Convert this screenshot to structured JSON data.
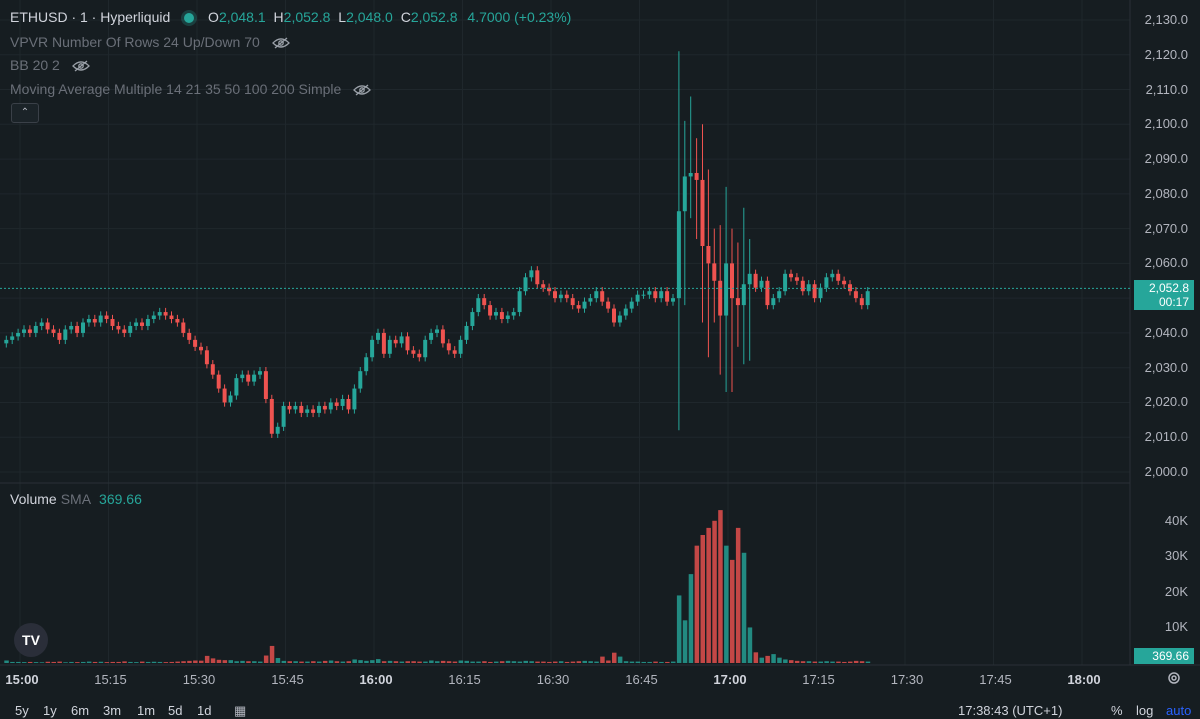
{
  "header": {
    "symbol": "ETHUSD · 1 · Hyperliquid",
    "o_label": "O",
    "o_value": "2,048.1",
    "h_label": "H",
    "h_value": "2,052.8",
    "l_label": "L",
    "l_value": "2,048.0",
    "c_label": "C",
    "c_value": "2,052.8",
    "change": "4.7000 (+0.23%)"
  },
  "indicators": [
    {
      "label": "VPVR Number Of Rows 24 Up/Down 70",
      "icon": "eye-hidden-icon"
    },
    {
      "label": "BB 20 2",
      "icon": "eye-hidden-icon"
    },
    {
      "label": "Moving Average Multiple 14 21 35 50 100 200 Simple",
      "icon": "eye-hidden-icon"
    }
  ],
  "volume": {
    "label": "Volume",
    "sma_label": "SMA",
    "sma_value": "369.66",
    "tag": "369.66"
  },
  "price_axis": [
    "2,130.0",
    "2,120.0",
    "2,110.0",
    "2,100.0",
    "2,090.0",
    "2,080.0",
    "2,070.0",
    "2,060.0",
    "2,050.0",
    "2,040.0",
    "2,030.0",
    "2,020.0",
    "2,010.0",
    "2,000.0"
  ],
  "volume_axis": [
    "40K",
    "30K",
    "20K",
    "10K"
  ],
  "price_tag": {
    "price": "2,052.8",
    "countdown": "00:17"
  },
  "time_axis": [
    {
      "label": "15:00",
      "bold": true
    },
    {
      "label": "15:15",
      "bold": false
    },
    {
      "label": "15:30",
      "bold": false
    },
    {
      "label": "15:45",
      "bold": false
    },
    {
      "label": "16:00",
      "bold": true
    },
    {
      "label": "16:15",
      "bold": false
    },
    {
      "label": "16:30",
      "bold": false
    },
    {
      "label": "16:45",
      "bold": false
    },
    {
      "label": "17:00",
      "bold": true
    },
    {
      "label": "17:15",
      "bold": false
    },
    {
      "label": "17:30",
      "bold": false
    },
    {
      "label": "17:45",
      "bold": false
    },
    {
      "label": "18:00",
      "bold": true
    }
  ],
  "bottom": {
    "ranges": [
      "5y",
      "1y",
      "6m",
      "3m",
      "1m",
      "5d",
      "1d"
    ],
    "clock": "17:38:43 (UTC+1)",
    "percent": "%",
    "log": "log",
    "auto": "auto"
  },
  "logo": "TV",
  "colors": {
    "up": "#26a69a",
    "down": "#ef5350",
    "background": "#161d21"
  },
  "chart_data": {
    "type": "candlestick",
    "x_start": "15:00",
    "interval_minutes": 1,
    "ylim": [
      2000,
      2130
    ],
    "volume_ylim": [
      0,
      45000
    ],
    "closes": [
      2038,
      2039,
      2040,
      2041,
      2040,
      2042,
      2043,
      2041,
      2040,
      2038,
      2041,
      2042,
      2040,
      2043,
      2044,
      2043,
      2045,
      2044,
      2042,
      2041,
      2040,
      2042,
      2043,
      2042,
      2044,
      2045,
      2046,
      2045,
      2044,
      2043,
      2040,
      2038,
      2036,
      2035,
      2031,
      2028,
      2024,
      2020,
      2022,
      2027,
      2028,
      2026,
      2028,
      2029,
      2021,
      2011,
      2013,
      2019,
      2018,
      2019,
      2017,
      2018,
      2017,
      2019,
      2018,
      2020,
      2019,
      2021,
      2018,
      2024,
      2029,
      2033,
      2038,
      2040,
      2034,
      2038,
      2037,
      2039,
      2035,
      2034,
      2033,
      2038,
      2040,
      2041,
      2037,
      2035,
      2034,
      2038,
      2042,
      2046,
      2050,
      2048,
      2045,
      2046,
      2044,
      2045,
      2046,
      2052,
      2056,
      2058,
      2054,
      2053,
      2052,
      2050,
      2051,
      2050,
      2048,
      2047,
      2049,
      2050,
      2052,
      2049,
      2047,
      2043,
      2045,
      2047,
      2049,
      2051,
      2051,
      2052,
      2050,
      2052,
      2049,
      2050,
      2075,
      2085,
      2086,
      2084,
      2065,
      2060,
      2055,
      2045,
      2060,
      2050,
      2048,
      2054,
      2057,
      2053,
      2055,
      2048,
      2050,
      2052,
      2057,
      2056,
      2055,
      2052,
      2054,
      2050,
      2053,
      2056,
      2057,
      2055,
      2054,
      2052,
      2050,
      2048,
      2052
    ],
    "volumes": [
      700,
      300,
      300,
      250,
      300,
      250,
      200,
      350,
      300,
      400,
      200,
      300,
      250,
      300,
      400,
      300,
      350,
      250,
      300,
      300,
      450,
      300,
      250,
      400,
      300,
      350,
      300,
      250,
      300,
      400,
      500,
      600,
      700,
      650,
      2000,
      1300,
      900,
      800,
      800,
      500,
      600,
      500,
      500,
      400,
      2100,
      4800,
      1400,
      600,
      500,
      500,
      400,
      400,
      500,
      400,
      600,
      700,
      500,
      400,
      500,
      1000,
      800,
      600,
      800,
      1100,
      500,
      600,
      500,
      400,
      500,
      500,
      400,
      400,
      700,
      500,
      600,
      500,
      400,
      700,
      600,
      400,
      400,
      500,
      300,
      400,
      500,
      600,
      500,
      400,
      600,
      500,
      400,
      400,
      300,
      400,
      500,
      300,
      400,
      500,
      600,
      500,
      400,
      1800,
      700,
      2900,
      1800,
      500,
      400,
      400,
      300,
      300,
      400,
      300,
      300,
      400,
      19000,
      12000,
      25000,
      33000,
      36000,
      38000,
      40000,
      43000,
      33000,
      29000,
      38000,
      31000,
      10000,
      3000,
      1500,
      2000,
      2500,
      1500,
      1000,
      800,
      600,
      500,
      500,
      400,
      400,
      500,
      400,
      400,
      300,
      400,
      600,
      500,
      400,
      500
    ]
  }
}
